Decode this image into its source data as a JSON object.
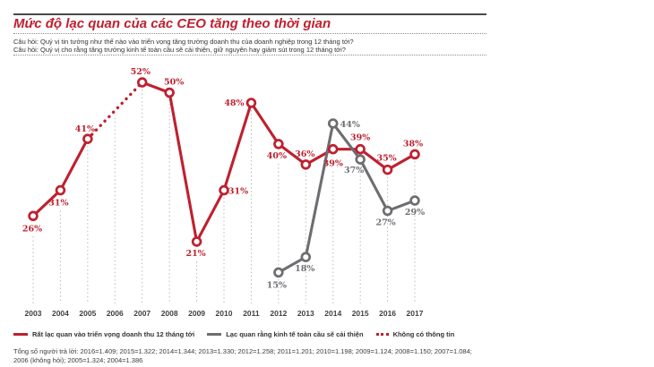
{
  "header": {
    "title": "Mức độ lạc quan của các CEO tăng theo thời gian",
    "question1": "Câu hỏi: Quý vị tin tưởng như thế nào vào triển vọng tăng trưởng doanh thu của doanh nghiệp trong 12 tháng tới?",
    "question2": "Câu hỏi: Quý vị cho rằng tăng trưởng kinh tế toàn cầu sẽ cải thiện, giữ nguyên hay giảm sút trong 12 tháng tới?"
  },
  "chart_data": {
    "type": "line",
    "years": [
      2003,
      2004,
      2005,
      2006,
      2007,
      2008,
      2009,
      2010,
      2011,
      2012,
      2013,
      2014,
      2015,
      2016,
      2017
    ],
    "no_data_years": [
      2006
    ],
    "ylim": [
      0,
      60
    ],
    "grid": "vertical-dotted",
    "legend_position": "bottom",
    "colors": {
      "primary_red": "#bf202f",
      "secondary_gray": "#6d6e71",
      "gridline": "#b9b9b9",
      "axis_text": "#3f3f3f"
    },
    "series": [
      {
        "name": "Rất lạc quan vào triển vọng doanh thu 12 tháng tới",
        "color": "#bf202f",
        "line_style": "solid",
        "dotted_segment": [
          2005,
          2007
        ],
        "points": [
          {
            "year": 2003,
            "value": 26,
            "dx": -1,
            "dy": 14
          },
          {
            "year": 2004,
            "value": 31,
            "dx": -2,
            "dy": 14
          },
          {
            "year": 2005,
            "value": 41,
            "dx": -3,
            "dy": -11
          },
          {
            "year": 2007,
            "value": 52,
            "dx": -2,
            "dy": -12
          },
          {
            "year": 2008,
            "value": 50,
            "dx": 5,
            "dy": -12
          },
          {
            "year": 2009,
            "value": 21,
            "dx": -1,
            "dy": 13
          },
          {
            "year": 2010,
            "value": 31,
            "dx": 16,
            "dy": 1
          },
          {
            "year": 2011,
            "value": 48,
            "dx": -19,
            "dy": 0
          },
          {
            "year": 2012,
            "value": 40,
            "dx": -2,
            "dy": 13
          },
          {
            "year": 2013,
            "value": 36,
            "dx": -1,
            "dy": -12
          },
          {
            "year": 2014,
            "value": 39,
            "dx": 0,
            "dy": 16
          },
          {
            "year": 2015,
            "value": 39,
            "dx": 0,
            "dy": -13
          },
          {
            "year": 2016,
            "value": 35,
            "dx": -1,
            "dy": -13
          },
          {
            "year": 2017,
            "value": 38,
            "dx": -2,
            "dy": -12
          }
        ]
      },
      {
        "name": "Lạc quan rằng kinh tế toàn cầu sẽ cải thiện",
        "color": "#6d6e71",
        "line_style": "solid",
        "points": [
          {
            "year": 2012,
            "value": 15,
            "dx": -2,
            "dy": 14
          },
          {
            "year": 2013,
            "value": 18,
            "dx": -1,
            "dy": 13
          },
          {
            "year": 2014,
            "value": 44,
            "dx": 19,
            "dy": 1
          },
          {
            "year": 2015,
            "value": 37,
            "dx": -7,
            "dy": 12
          },
          {
            "year": 2016,
            "value": 27,
            "dx": -2,
            "dy": 13
          },
          {
            "year": 2017,
            "value": 29,
            "dx": 0,
            "dy": 13
          }
        ]
      }
    ]
  },
  "legend": {
    "items": [
      {
        "label": "Rất lạc quan vào triển vọng doanh thu 12 tháng tới",
        "swatch": "line-solid",
        "color": "#bf202f"
      },
      {
        "label": "Lạc quan rằng kinh tế toàn cầu sẽ cải thiện",
        "swatch": "line-solid",
        "color": "#6d6e71"
      },
      {
        "label": "Không có thông tin",
        "swatch": "line-dotted",
        "color": "#bf202f"
      }
    ]
  },
  "footer": {
    "note_line1": "Tổng số người trả lời: 2016=1.409; 2015=1.322; 2014=1.344; 2013=1.330; 2012=1.258; 2011=1.201; 2010=1.198; 2009=1.124; 2008=1.150; 2007=1.084;",
    "note_line2": "2006 (không hỏi); 2005=1.324; 2004=1.386"
  }
}
